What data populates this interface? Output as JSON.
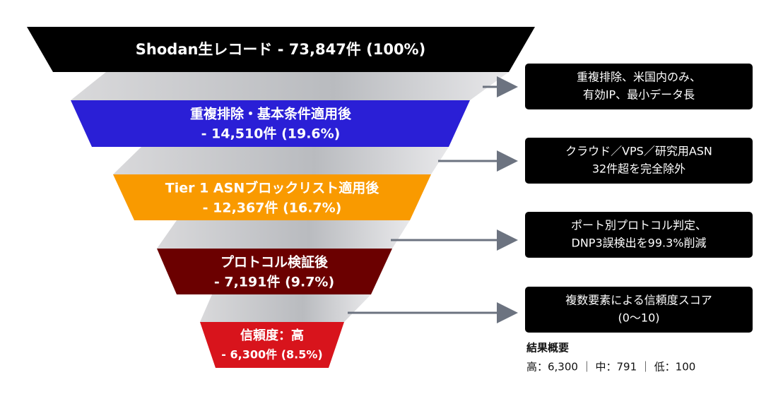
{
  "stages": [
    {
      "lines": [
        "Shodan生レコード - 73,847件 (100%)"
      ]
    },
    {
      "lines": [
        "重複排除・基本条件適用後",
        "- 14,510件 (19.6%)"
      ]
    },
    {
      "lines": [
        "Tier 1 ASNブロックリスト適用後",
        "- 12,367件 (16.7%)"
      ]
    },
    {
      "lines": [
        "プロトコル検証後",
        "- 7,191件 (9.7%)"
      ]
    },
    {
      "lines": [
        "信頼度：高",
        "- 6,300件 (8.5%)"
      ]
    }
  ],
  "notes": [
    {
      "lines": [
        "重複排除、米国内のみ、",
        "有効IP、最小データ長"
      ]
    },
    {
      "lines": [
        "クラウド／VPS／研究用ASN",
        "32件超を完全除外"
      ]
    },
    {
      "lines": [
        "ポート別プロトコル判定、",
        "DNP3誤検出を99.3%削減"
      ]
    },
    {
      "lines": [
        "複数要素による信頼度スコア",
        "(0〜10)"
      ]
    }
  ],
  "summary": {
    "title": "結果概要",
    "text": "高：6,300 ｜ 中：791 ｜ 低：100"
  }
}
